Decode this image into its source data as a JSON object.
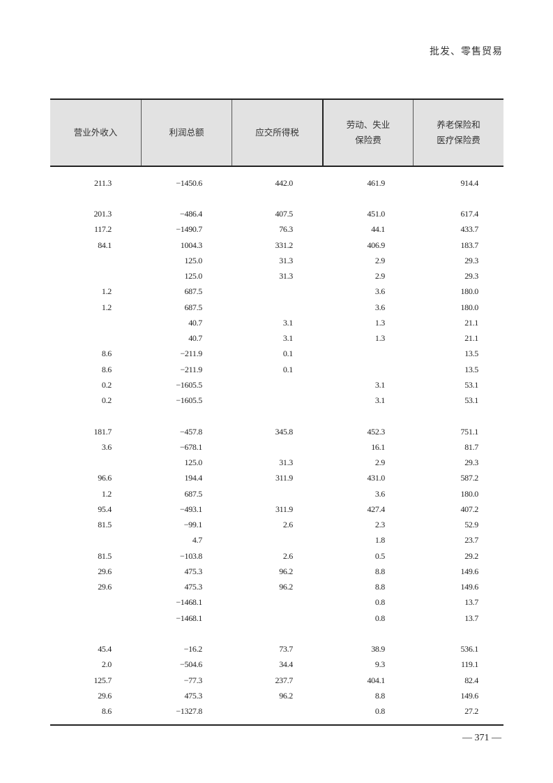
{
  "running_head": "批发、零售贸易",
  "table": {
    "headers": [
      "营业外收入",
      "利润总额",
      "应交所得税",
      "劳动、失业\n保险费",
      "养老保险和\n医疗保险费"
    ],
    "rows": [
      [
        "211.3",
        "−1450.6",
        "442.0",
        "461.9",
        "914.4"
      ],
      [
        "",
        "",
        "",
        "",
        ""
      ],
      [
        "201.3",
        "−486.4",
        "407.5",
        "451.0",
        "617.4"
      ],
      [
        "117.2",
        "−1490.7",
        "76.3",
        "44.1",
        "433.7"
      ],
      [
        "84.1",
        "1004.3",
        "331.2",
        "406.9",
        "183.7"
      ],
      [
        "",
        "125.0",
        "31.3",
        "2.9",
        "29.3"
      ],
      [
        "",
        "125.0",
        "31.3",
        "2.9",
        "29.3"
      ],
      [
        "1.2",
        "687.5",
        "",
        "3.6",
        "180.0"
      ],
      [
        "1.2",
        "687.5",
        "",
        "3.6",
        "180.0"
      ],
      [
        "",
        "40.7",
        "3.1",
        "1.3",
        "21.1"
      ],
      [
        "",
        "40.7",
        "3.1",
        "1.3",
        "21.1"
      ],
      [
        "8.6",
        "−211.9",
        "0.1",
        "",
        "13.5"
      ],
      [
        "8.6",
        "−211.9",
        "0.1",
        "",
        "13.5"
      ],
      [
        "0.2",
        "−1605.5",
        "",
        "3.1",
        "53.1"
      ],
      [
        "0.2",
        "−1605.5",
        "",
        "3.1",
        "53.1"
      ],
      [
        "",
        "",
        "",
        "",
        ""
      ],
      [
        "181.7",
        "−457.8",
        "345.8",
        "452.3",
        "751.1"
      ],
      [
        "3.6",
        "−678.1",
        "",
        "16.1",
        "81.7"
      ],
      [
        "",
        "125.0",
        "31.3",
        "2.9",
        "29.3"
      ],
      [
        "96.6",
        "194.4",
        "311.9",
        "431.0",
        "587.2"
      ],
      [
        "1.2",
        "687.5",
        "",
        "3.6",
        "180.0"
      ],
      [
        "95.4",
        "−493.1",
        "311.9",
        "427.4",
        "407.2"
      ],
      [
        "81.5",
        "−99.1",
        "2.6",
        "2.3",
        "52.9"
      ],
      [
        "",
        "4.7",
        "",
        "1.8",
        "23.7"
      ],
      [
        "81.5",
        "−103.8",
        "2.6",
        "0.5",
        "29.2"
      ],
      [
        "29.6",
        "475.3",
        "96.2",
        "8.8",
        "149.6"
      ],
      [
        "29.6",
        "475.3",
        "96.2",
        "8.8",
        "149.6"
      ],
      [
        "",
        "−1468.1",
        "",
        "0.8",
        "13.7"
      ],
      [
        "",
        "−1468.1",
        "",
        "0.8",
        "13.7"
      ],
      [
        "",
        "",
        "",
        "",
        ""
      ],
      [
        "45.4",
        "−16.2",
        "73.7",
        "38.9",
        "536.1"
      ],
      [
        "2.0",
        "−504.6",
        "34.4",
        "9.3",
        "119.1"
      ],
      [
        "125.7",
        "−77.3",
        "237.7",
        "404.1",
        "82.4"
      ],
      [
        "29.6",
        "475.3",
        "96.2",
        "8.8",
        "149.6"
      ],
      [
        "8.6",
        "−1327.8",
        "",
        "0.8",
        "27.2"
      ]
    ]
  },
  "page_number": "— 371 —"
}
